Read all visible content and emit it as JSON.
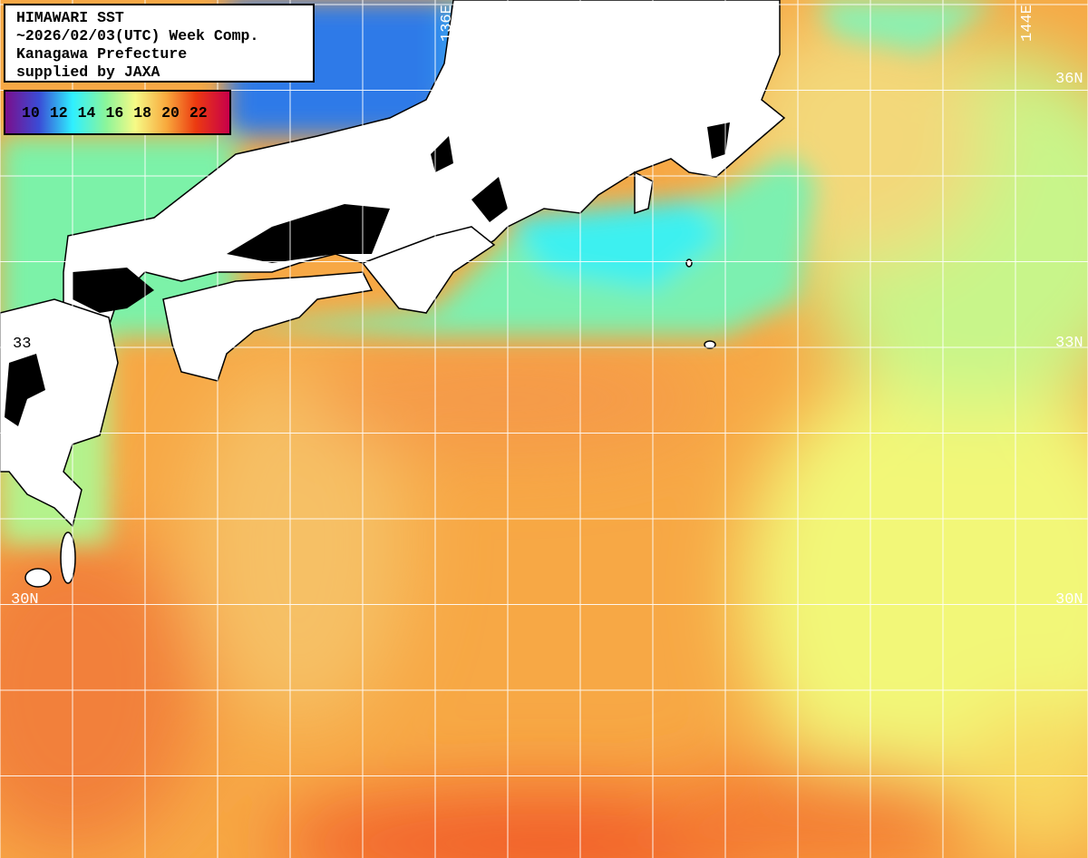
{
  "title_box": {
    "lines": [
      "HIMAWARI SST",
      "~2026/02/03(UTC) Week Comp.",
      "Kanagawa Prefecture",
      "supplied by JAXA"
    ]
  },
  "legend": {
    "unit_labels": [
      "10",
      "12",
      "14",
      "16",
      "18",
      "20",
      "22"
    ],
    "colors": [
      "#7a0f8c",
      "#3a4cd6",
      "#2ff0ff",
      "#8cf59a",
      "#f6fa86",
      "#f8a83c",
      "#ec3a10",
      "#c8004a"
    ]
  },
  "grid_labels": {
    "lon": [
      "136E",
      "144E"
    ],
    "lat": [
      "36N",
      "33N",
      "30N",
      "30N",
      "33"
    ]
  }
}
